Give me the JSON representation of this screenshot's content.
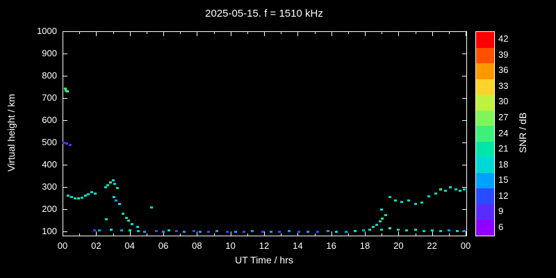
{
  "chart_data": {
    "type": "scatter",
    "title": "2025-05-15. f = 1510 kHz",
    "xlabel": "UT Time / hrs",
    "ylabel": "Virtual height / km",
    "xlim": [
      0,
      24
    ],
    "ylim": [
      85,
      1000
    ],
    "grid": false,
    "x_ticks": {
      "values": [
        0,
        2,
        4,
        6,
        8,
        10,
        12,
        14,
        16,
        18,
        20,
        22,
        24
      ],
      "labels": [
        "00",
        "02",
        "04",
        "06",
        "08",
        "10",
        "12",
        "14",
        "16",
        "18",
        "20",
        "22",
        "00"
      ],
      "minor_step": 1
    },
    "y_ticks": [
      100,
      200,
      300,
      400,
      500,
      600,
      700,
      800,
      900,
      1000
    ],
    "colorbar": {
      "label": "SNR / dB",
      "min": 6,
      "max": 42,
      "ticks": [
        6,
        9,
        12,
        15,
        18,
        21,
        24,
        27,
        30,
        33,
        36,
        39,
        42
      ],
      "scale": [
        {
          "v": 6,
          "c": "#9000ff"
        },
        {
          "v": 9,
          "c": "#5a2bff"
        },
        {
          "v": 12,
          "c": "#2a4bff"
        },
        {
          "v": 15,
          "c": "#00a0ff"
        },
        {
          "v": 18,
          "c": "#00d8d8"
        },
        {
          "v": 21,
          "c": "#00e6a8"
        },
        {
          "v": 24,
          "c": "#3cf07a"
        },
        {
          "v": 27,
          "c": "#80f55a"
        },
        {
          "v": 30,
          "c": "#c0f040"
        },
        {
          "v": 33,
          "c": "#ffd22b"
        },
        {
          "v": 36,
          "c": "#ff9800"
        },
        {
          "v": 39,
          "c": "#ff5000"
        },
        {
          "v": 42,
          "c": "#ff0000"
        }
      ]
    },
    "points": [
      [
        0.15,
        745,
        24
      ],
      [
        0.3,
        730,
        27
      ],
      [
        0.2,
        736,
        21
      ],
      [
        0.1,
        500,
        9
      ],
      [
        0.25,
        497,
        12
      ],
      [
        0.45,
        490,
        9
      ],
      [
        0.35,
        262,
        18
      ],
      [
        0.55,
        256,
        21
      ],
      [
        0.75,
        250,
        18
      ],
      [
        0.95,
        252,
        24
      ],
      [
        1.15,
        255,
        18
      ],
      [
        1.35,
        262,
        21
      ],
      [
        1.55,
        270,
        18
      ],
      [
        1.75,
        278,
        18
      ],
      [
        1.95,
        272,
        21
      ],
      [
        2.55,
        300,
        18
      ],
      [
        2.7,
        310,
        21
      ],
      [
        2.85,
        322,
        24
      ],
      [
        3.0,
        331,
        18
      ],
      [
        3.1,
        316,
        18
      ],
      [
        3.25,
        296,
        21
      ],
      [
        3.05,
        256,
        18
      ],
      [
        3.2,
        241,
        15
      ],
      [
        3.4,
        226,
        18
      ],
      [
        3.6,
        181,
        21
      ],
      [
        3.8,
        162,
        18
      ],
      [
        3.95,
        150,
        21
      ],
      [
        4.15,
        136,
        18
      ],
      [
        4.45,
        121,
        18
      ],
      [
        2.6,
        156,
        18
      ],
      [
        5.3,
        211,
        18
      ],
      [
        1.9,
        106,
        12
      ],
      [
        2.2,
        108,
        15
      ],
      [
        2.9,
        110,
        18
      ],
      [
        3.5,
        106,
        15
      ],
      [
        4.0,
        108,
        21
      ],
      [
        4.5,
        105,
        18
      ],
      [
        4.9,
        102,
        15
      ],
      [
        5.6,
        105,
        12
      ],
      [
        6.0,
        101,
        15
      ],
      [
        6.35,
        108,
        18
      ],
      [
        6.8,
        103,
        12
      ],
      [
        7.25,
        100,
        15
      ],
      [
        7.8,
        105,
        12
      ],
      [
        8.2,
        102,
        15
      ],
      [
        8.7,
        100,
        12
      ],
      [
        9.2,
        103,
        15
      ],
      [
        9.8,
        100,
        12
      ],
      [
        10.3,
        102,
        15
      ],
      [
        10.8,
        100,
        12
      ],
      [
        11.3,
        103,
        15
      ],
      [
        11.9,
        100,
        12
      ],
      [
        12.4,
        102,
        15
      ],
      [
        12.9,
        100,
        12
      ],
      [
        13.5,
        103,
        15
      ],
      [
        14.05,
        100,
        12
      ],
      [
        14.6,
        102,
        15
      ],
      [
        15.2,
        100,
        12
      ],
      [
        15.8,
        103,
        15
      ],
      [
        16.3,
        100,
        18
      ],
      [
        16.9,
        102,
        15
      ],
      [
        17.4,
        105,
        18
      ],
      [
        17.9,
        108,
        15
      ],
      [
        18.3,
        111,
        18
      ],
      [
        18.5,
        121,
        21
      ],
      [
        18.7,
        131,
        18
      ],
      [
        18.9,
        146,
        21
      ],
      [
        19.05,
        161,
        24
      ],
      [
        19.25,
        176,
        21
      ],
      [
        19.0,
        201,
        18
      ],
      [
        19.5,
        256,
        18
      ],
      [
        19.8,
        241,
        21
      ],
      [
        20.2,
        236,
        18
      ],
      [
        20.6,
        241,
        21
      ],
      [
        21.0,
        226,
        18
      ],
      [
        21.4,
        231,
        21
      ],
      [
        21.8,
        261,
        18
      ],
      [
        22.2,
        271,
        21
      ],
      [
        22.5,
        291,
        24
      ],
      [
        22.8,
        286,
        18
      ],
      [
        23.1,
        301,
        21
      ],
      [
        23.4,
        291,
        18
      ],
      [
        23.65,
        286,
        21
      ],
      [
        23.9,
        291,
        18
      ],
      [
        19.0,
        111,
        21
      ],
      [
        19.5,
        116,
        24
      ],
      [
        20.0,
        110,
        21
      ],
      [
        20.5,
        108,
        18
      ],
      [
        21.0,
        111,
        21
      ],
      [
        21.5,
        105,
        18
      ],
      [
        22.0,
        108,
        21
      ],
      [
        22.5,
        105,
        18
      ],
      [
        23.0,
        108,
        15
      ],
      [
        23.5,
        105,
        18
      ],
      [
        23.9,
        103,
        15
      ]
    ]
  }
}
